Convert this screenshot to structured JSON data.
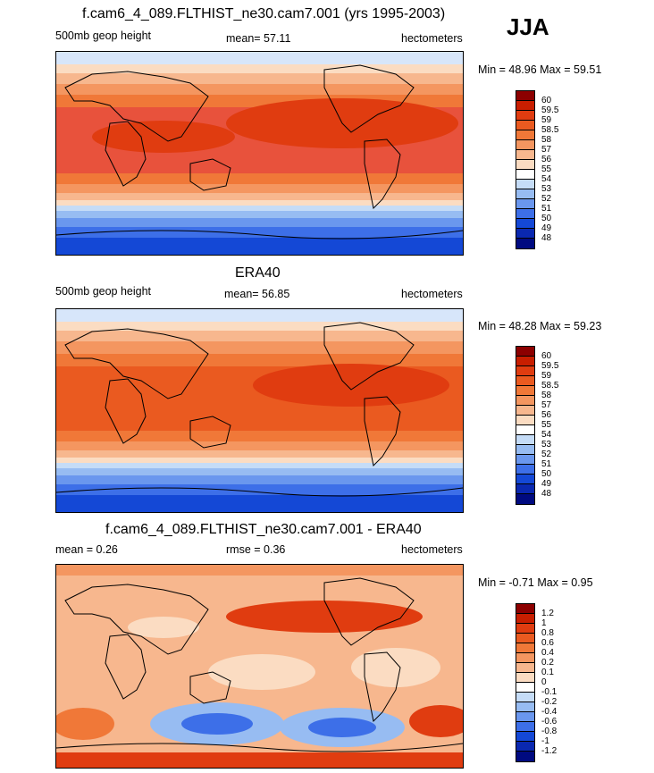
{
  "season": "JJA",
  "panels": [
    {
      "title": "f.cam6_4_089.FLTHIST_ne30.cam7.001 (yrs 1995-2003)",
      "left_label": "500mb geop height",
      "center_label": "mean=  57.11",
      "right_label": "hectometers",
      "minmax": "Min =  48.96 Max =  59.51",
      "colorbar": {
        "ticks": [
          "60",
          "59.5",
          "59",
          "58.5",
          "58",
          "57",
          "56",
          "55",
          "54",
          "53",
          "52",
          "51",
          "50",
          "49",
          "48"
        ],
        "colors": [
          "#8c0000",
          "#c81e00",
          "#e03c10",
          "#ea5a20",
          "#f07838",
          "#f49660",
          "#f7b78e",
          "#fbdcc2",
          "#ffffff",
          "#c5dcf7",
          "#97bcf2",
          "#6a97ee",
          "#3d6fe8",
          "#1448d6",
          "#0a28b0",
          "#000a80"
        ]
      }
    },
    {
      "title": "ERA40",
      "left_label": "500mb geop height",
      "center_label": "mean=  56.85",
      "right_label": "hectometers",
      "minmax": "Min =  48.28 Max =  59.23",
      "colorbar": {
        "ticks": [
          "60",
          "59.5",
          "59",
          "58.5",
          "58",
          "57",
          "56",
          "55",
          "54",
          "53",
          "52",
          "51",
          "50",
          "49",
          "48"
        ],
        "colors": [
          "#8c0000",
          "#c81e00",
          "#e03c10",
          "#ea5a20",
          "#f07838",
          "#f49660",
          "#f7b78e",
          "#fbdcc2",
          "#ffffff",
          "#c5dcf7",
          "#97bcf2",
          "#6a97ee",
          "#3d6fe8",
          "#1448d6",
          "#0a28b0",
          "#000a80"
        ]
      }
    },
    {
      "title": "f.cam6_4_089.FLTHIST_ne30.cam7.001 - ERA40",
      "left_label": "mean =   0.26",
      "center_label": "rmse =   0.36",
      "right_label": "hectometers",
      "minmax": "Min =  -0.71 Max =   0.95",
      "colorbar": {
        "ticks": [
          "1.2",
          "1",
          "0.8",
          "0.6",
          "0.4",
          "0.2",
          "0.1",
          "0",
          "-0.1",
          "-0.2",
          "-0.4",
          "-0.6",
          "-0.8",
          "-1",
          "-1.2"
        ],
        "colors": [
          "#8c0000",
          "#c81e00",
          "#e03c10",
          "#ea5a20",
          "#f07838",
          "#f49660",
          "#f7b78e",
          "#fbdcc2",
          "#ffffff",
          "#c5dcf7",
          "#97bcf2",
          "#6a97ee",
          "#3d6fe8",
          "#1448d6",
          "#0a28b0",
          "#000a80"
        ]
      }
    }
  ]
}
